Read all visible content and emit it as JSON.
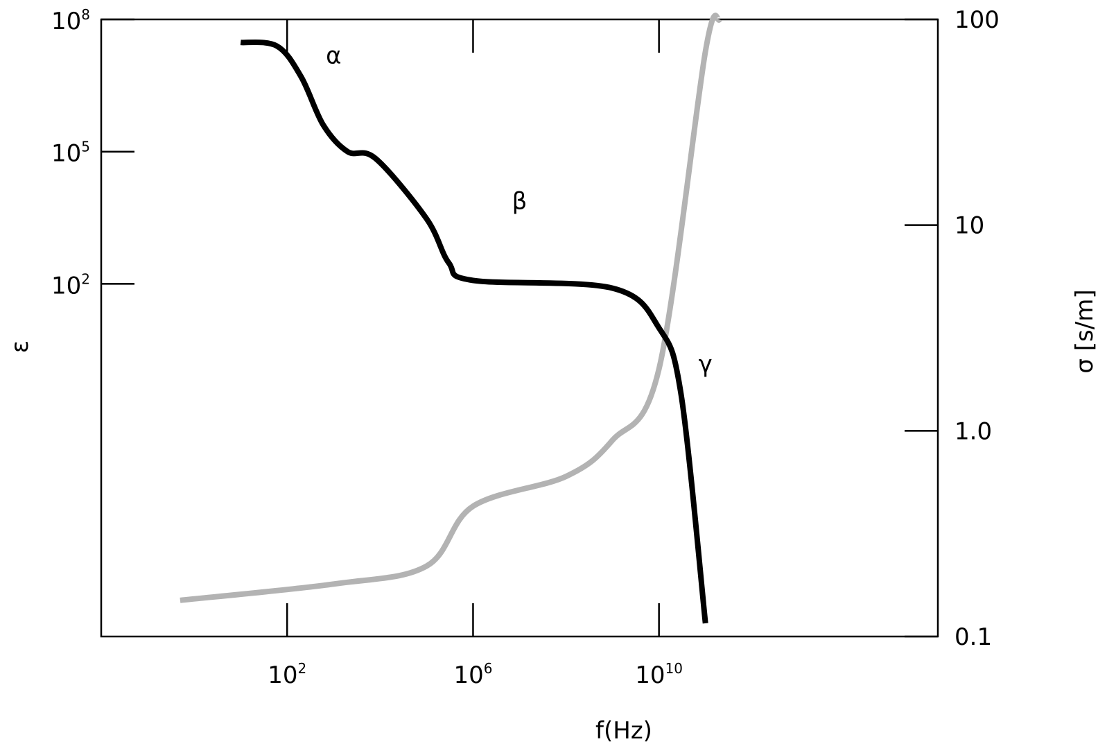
{
  "chart_data": {
    "type": "line",
    "xlabel": "f(Hz)",
    "ylabel_left": "ε",
    "ylabel_right": "σ [s/m]",
    "x_scale": "log",
    "y_left_scale": "log",
    "y_right_scale": "log",
    "xlim": [
      0.01,
      1e+16
    ],
    "ylim_left": [
      1e-06,
      100000000
    ],
    "ylim_right": [
      0.1,
      100
    ],
    "x_ticks": [
      {
        "value": 100,
        "base": "10",
        "exp": "2"
      },
      {
        "value": 1000000,
        "base": "10",
        "exp": "6"
      },
      {
        "value": 10000000000,
        "base": "10",
        "exp": "10"
      }
    ],
    "y_left_ticks": [
      {
        "value": 100,
        "base": "10",
        "exp": "2"
      },
      {
        "value": 100000,
        "base": "10",
        "exp": "5"
      },
      {
        "value": 100000000,
        "base": "10",
        "exp": "8"
      }
    ],
    "y_right_ticks": [
      {
        "value": 0.1,
        "label": "0.1"
      },
      {
        "value": 1,
        "label": "1.0"
      },
      {
        "value": 10,
        "label": "10"
      },
      {
        "value": 100,
        "label": "100"
      }
    ],
    "grid": false,
    "series": [
      {
        "axis": "left",
        "color": "#000000",
        "x": [
          10,
          60,
          200,
          600,
          2000,
          8000,
          100000,
          300000,
          1000000,
          1000000000,
          10000000000,
          30000000000,
          100000000000
        ],
        "values": [
          30000000,
          25000000,
          5000000,
          400000,
          100000,
          70000,
          3000,
          300,
          120,
          80,
          10,
          0.3,
          2e-06
        ]
      },
      {
        "axis": "right",
        "color": "#b3b3b3",
        "x": [
          0.5,
          1000,
          100000,
          1000000,
          100000000,
          1000000000,
          10000000000,
          100000000000,
          200000000000
        ],
        "values": [
          0.15,
          0.18,
          0.22,
          0.43,
          0.6,
          0.9,
          2.0,
          70,
          100
        ]
      }
    ],
    "annotations": [
      {
        "text": "α",
        "x": 1000,
        "y": 10000000
      },
      {
        "text": "β",
        "x": 10000000,
        "y": 5000
      },
      {
        "text": "γ",
        "x": 100000000000,
        "y": 1
      }
    ]
  }
}
